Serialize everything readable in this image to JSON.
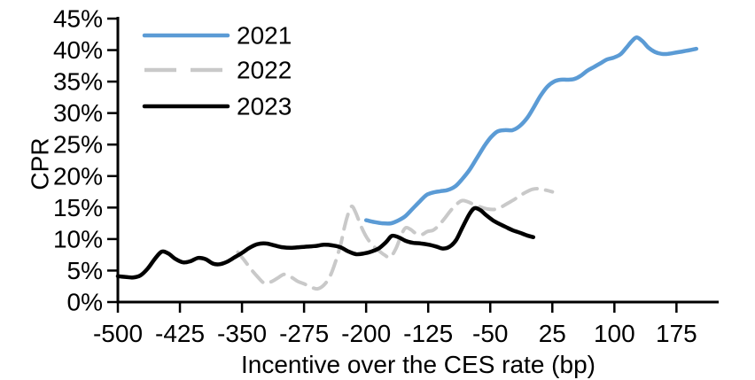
{
  "colors": {
    "axis": "#000000",
    "text": "#000000",
    "series_2021": "#5B9BD5",
    "series_2022": "#C9C9C9",
    "series_2023": "#000000",
    "background": "#FFFFFF"
  },
  "legend": {
    "position": "top-left",
    "entries": [
      {
        "label": "2021",
        "style": "solid",
        "color": "#5B9BD5"
      },
      {
        "label": "2022",
        "style": "dashed",
        "color": "#C9C9C9"
      },
      {
        "label": "2023",
        "style": "solid",
        "color": "#000000"
      }
    ]
  },
  "chart_data": {
    "type": "line",
    "title": "",
    "xlabel": "Incentive over the CES rate (bp)",
    "ylabel": "CPR",
    "xlim": [
      -500,
      226
    ],
    "ylim": [
      0,
      45
    ],
    "grid": false,
    "legend_position": "top-left",
    "x_ticks": [
      -500,
      -425,
      -350,
      -275,
      -200,
      -125,
      -50,
      25,
      100,
      175
    ],
    "y_tick_values": [
      0,
      5,
      10,
      15,
      20,
      25,
      30,
      35,
      40,
      45
    ],
    "y_tick_labels": [
      "0%",
      "5%",
      "10%",
      "15%",
      "20%",
      "25%",
      "30%",
      "35%",
      "40%",
      "45%"
    ],
    "series": [
      {
        "name": "2021",
        "color": "#5B9BD5",
        "dash": "solid",
        "points": [
          [
            -200,
            13.0
          ],
          [
            -190,
            12.7
          ],
          [
            -180,
            12.5
          ],
          [
            -170,
            12.5
          ],
          [
            -162,
            12.9
          ],
          [
            -153,
            13.6
          ],
          [
            -144,
            14.8
          ],
          [
            -135,
            16.0
          ],
          [
            -127,
            17.0
          ],
          [
            -119,
            17.4
          ],
          [
            -110,
            17.6
          ],
          [
            -101,
            17.8
          ],
          [
            -92,
            18.4
          ],
          [
            -84,
            19.5
          ],
          [
            -75,
            21.0
          ],
          [
            -66,
            22.9
          ],
          [
            -57,
            24.8
          ],
          [
            -49,
            26.2
          ],
          [
            -41,
            27.1
          ],
          [
            -32,
            27.3
          ],
          [
            -23,
            27.3
          ],
          [
            -14,
            28.0
          ],
          [
            -5,
            29.3
          ],
          [
            3,
            31.0
          ],
          [
            11,
            32.8
          ],
          [
            19,
            34.2
          ],
          [
            27,
            35.0
          ],
          [
            35,
            35.3
          ],
          [
            43,
            35.3
          ],
          [
            51,
            35.4
          ],
          [
            59,
            35.9
          ],
          [
            67,
            36.7
          ],
          [
            75,
            37.3
          ],
          [
            83,
            37.9
          ],
          [
            91,
            38.5
          ],
          [
            99,
            38.8
          ],
          [
            107,
            39.3
          ],
          [
            114,
            40.3
          ],
          [
            121,
            41.4
          ],
          [
            127,
            42.0
          ],
          [
            134,
            41.4
          ],
          [
            141,
            40.4
          ],
          [
            149,
            39.7
          ],
          [
            157,
            39.4
          ],
          [
            165,
            39.4
          ],
          [
            174,
            39.6
          ],
          [
            183,
            39.8
          ],
          [
            191,
            40.0
          ],
          [
            199,
            40.2
          ]
        ]
      },
      {
        "name": "2022",
        "color": "#C9C9C9",
        "dash": "dashed",
        "points": [
          [
            -355,
            7.9
          ],
          [
            -347,
            6.6
          ],
          [
            -339,
            5.2
          ],
          [
            -331,
            4.0
          ],
          [
            -323,
            3.0
          ],
          [
            -315,
            3.2
          ],
          [
            -307,
            3.8
          ],
          [
            -299,
            4.4
          ],
          [
            -291,
            4.0
          ],
          [
            -283,
            3.3
          ],
          [
            -275,
            2.9
          ],
          [
            -267,
            2.4
          ],
          [
            -259,
            2.1
          ],
          [
            -251,
            2.7
          ],
          [
            -244,
            4.0
          ],
          [
            -238,
            6.0
          ],
          [
            -231,
            9.0
          ],
          [
            -226,
            12.0
          ],
          [
            -221,
            14.3
          ],
          [
            -217,
            15.2
          ],
          [
            -212,
            14.0
          ],
          [
            -206,
            12.0
          ],
          [
            -199,
            10.2
          ],
          [
            -192,
            9.0
          ],
          [
            -185,
            8.2
          ],
          [
            -178,
            7.5
          ],
          [
            -171,
            7.1
          ],
          [
            -164,
            8.5
          ],
          [
            -157,
            10.8
          ],
          [
            -152,
            11.8
          ],
          [
            -146,
            11.5
          ],
          [
            -140,
            10.9
          ],
          [
            -133,
            10.7
          ],
          [
            -126,
            11.2
          ],
          [
            -119,
            11.4
          ],
          [
            -112,
            12.2
          ],
          [
            -105,
            13.3
          ],
          [
            -98,
            14.5
          ],
          [
            -91,
            15.5
          ],
          [
            -84,
            16.1
          ],
          [
            -77,
            15.9
          ],
          [
            -70,
            15.5
          ],
          [
            -62,
            15.1
          ],
          [
            -54,
            14.8
          ],
          [
            -46,
            14.7
          ],
          [
            -38,
            15.0
          ],
          [
            -30,
            15.6
          ],
          [
            -22,
            16.2
          ],
          [
            -14,
            16.9
          ],
          [
            -6,
            17.5
          ],
          [
            1,
            17.9
          ],
          [
            8,
            18.0
          ],
          [
            16,
            17.8
          ],
          [
            25,
            17.5
          ]
        ]
      },
      {
        "name": "2023",
        "color": "#000000",
        "dash": "solid",
        "points": [
          [
            -500,
            4.1
          ],
          [
            -491,
            4.0
          ],
          [
            -482,
            3.9
          ],
          [
            -473,
            4.2
          ],
          [
            -464,
            5.3
          ],
          [
            -455,
            6.9
          ],
          [
            -447,
            8.0
          ],
          [
            -439,
            7.7
          ],
          [
            -430,
            6.8
          ],
          [
            -421,
            6.3
          ],
          [
            -412,
            6.5
          ],
          [
            -403,
            7.0
          ],
          [
            -394,
            6.8
          ],
          [
            -385,
            6.1
          ],
          [
            -377,
            6.0
          ],
          [
            -368,
            6.4
          ],
          [
            -359,
            7.1
          ],
          [
            -350,
            7.8
          ],
          [
            -341,
            8.6
          ],
          [
            -331,
            9.2
          ],
          [
            -321,
            9.3
          ],
          [
            -311,
            9.0
          ],
          [
            -301,
            8.7
          ],
          [
            -291,
            8.6
          ],
          [
            -281,
            8.7
          ],
          [
            -271,
            8.8
          ],
          [
            -261,
            8.9
          ],
          [
            -251,
            9.1
          ],
          [
            -241,
            9.0
          ],
          [
            -231,
            8.7
          ],
          [
            -221,
            8.0
          ],
          [
            -212,
            7.6
          ],
          [
            -203,
            7.7
          ],
          [
            -194,
            8.0
          ],
          [
            -185,
            8.5
          ],
          [
            -176,
            9.5
          ],
          [
            -169,
            10.5
          ],
          [
            -161,
            10.3
          ],
          [
            -152,
            9.7
          ],
          [
            -143,
            9.4
          ],
          [
            -134,
            9.3
          ],
          [
            -124,
            9.1
          ],
          [
            -115,
            8.8
          ],
          [
            -107,
            8.5
          ],
          [
            -99,
            8.8
          ],
          [
            -91,
            9.9
          ],
          [
            -83,
            12.0
          ],
          [
            -75,
            14.0
          ],
          [
            -69,
            14.9
          ],
          [
            -62,
            14.6
          ],
          [
            -55,
            13.8
          ],
          [
            -47,
            13.0
          ],
          [
            -39,
            12.4
          ],
          [
            -31,
            11.9
          ],
          [
            -23,
            11.4
          ],
          [
            -14,
            11.0
          ],
          [
            -6,
            10.6
          ],
          [
            2,
            10.3
          ]
        ]
      }
    ]
  }
}
